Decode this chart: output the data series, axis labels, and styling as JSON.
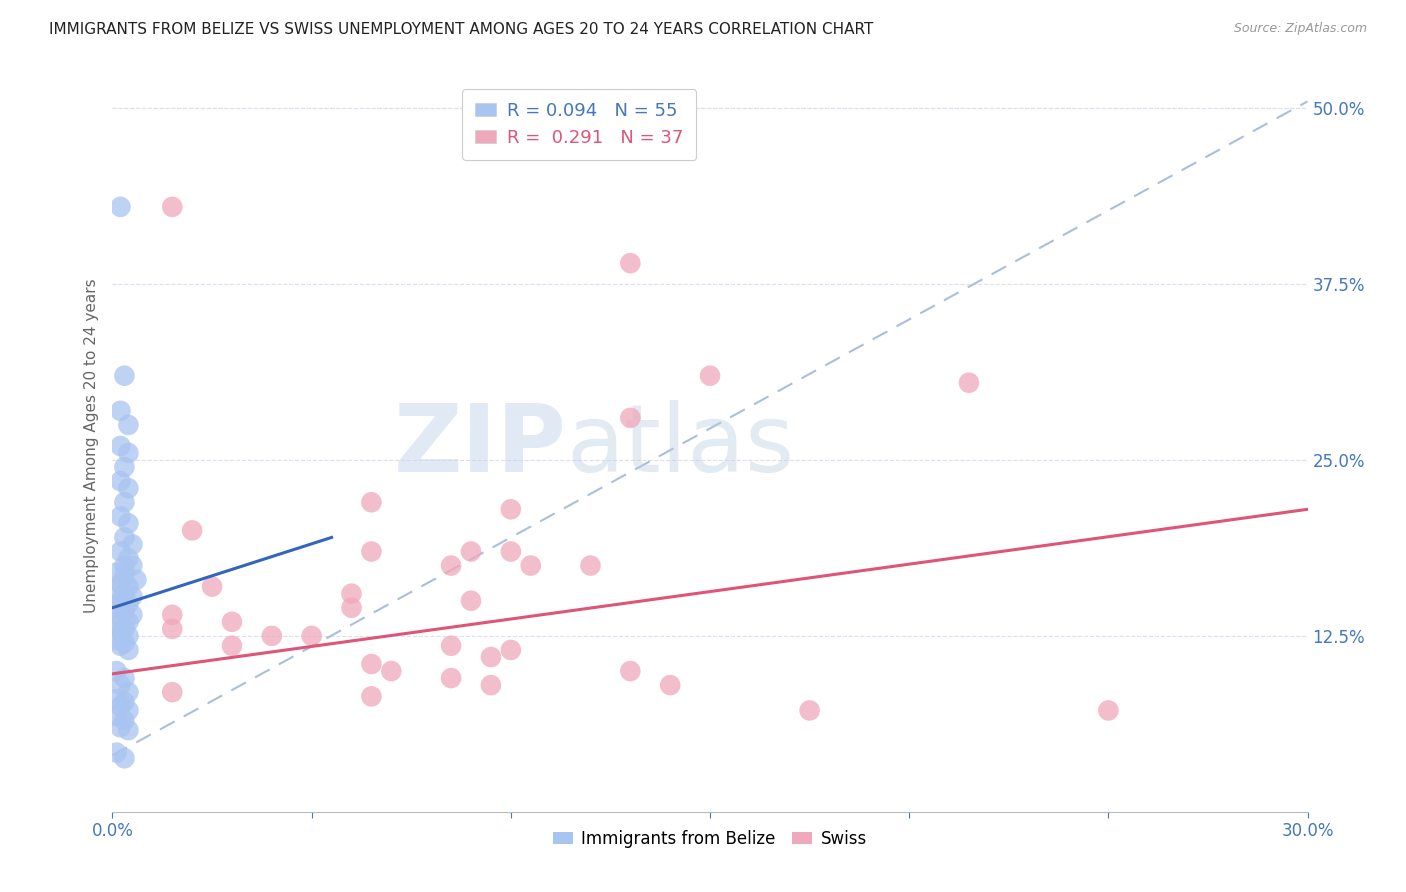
{
  "title": "IMMIGRANTS FROM BELIZE VS SWISS UNEMPLOYMENT AMONG AGES 20 TO 24 YEARS CORRELATION CHART",
  "source": "Source: ZipAtlas.com",
  "ylabel": "Unemployment Among Ages 20 to 24 years",
  "xlim": [
    0.0,
    0.3
  ],
  "ylim": [
    0.0,
    0.52
  ],
  "xticks": [
    0.0,
    0.05,
    0.1,
    0.15,
    0.2,
    0.25,
    0.3
  ],
  "xticklabels": [
    "0.0%",
    "",
    "",
    "",
    "",
    "",
    "30.0%"
  ],
  "yticks": [
    0.0,
    0.125,
    0.25,
    0.375,
    0.5
  ],
  "yticklabels": [
    "",
    "12.5%",
    "25.0%",
    "37.5%",
    "50.0%"
  ],
  "legend_r1": "R = 0.094",
  "legend_n1": "N = 55",
  "legend_r2": "R =  0.291",
  "legend_n2": "N = 37",
  "belize_color": "#a8c4f0",
  "swiss_color": "#f0a8bc",
  "belize_line_color": "#3366bb",
  "swiss_line_color": "#dd5577",
  "trendline_dash_color": "#aabfdb",
  "watermark_zip": "ZIP",
  "watermark_atlas": "atlas",
  "belize_points": [
    [
      0.002,
      0.43
    ],
    [
      0.003,
      0.31
    ],
    [
      0.002,
      0.285
    ],
    [
      0.004,
      0.275
    ],
    [
      0.002,
      0.26
    ],
    [
      0.004,
      0.255
    ],
    [
      0.003,
      0.245
    ],
    [
      0.002,
      0.235
    ],
    [
      0.004,
      0.23
    ],
    [
      0.003,
      0.22
    ],
    [
      0.002,
      0.21
    ],
    [
      0.004,
      0.205
    ],
    [
      0.003,
      0.195
    ],
    [
      0.005,
      0.19
    ],
    [
      0.002,
      0.185
    ],
    [
      0.004,
      0.18
    ],
    [
      0.003,
      0.175
    ],
    [
      0.005,
      0.175
    ],
    [
      0.001,
      0.17
    ],
    [
      0.003,
      0.168
    ],
    [
      0.006,
      0.165
    ],
    [
      0.002,
      0.162
    ],
    [
      0.004,
      0.16
    ],
    [
      0.001,
      0.158
    ],
    [
      0.003,
      0.155
    ],
    [
      0.005,
      0.153
    ],
    [
      0.002,
      0.15
    ],
    [
      0.004,
      0.148
    ],
    [
      0.001,
      0.145
    ],
    [
      0.003,
      0.143
    ],
    [
      0.005,
      0.14
    ],
    [
      0.002,
      0.138
    ],
    [
      0.004,
      0.135
    ],
    [
      0.001,
      0.132
    ],
    [
      0.003,
      0.13
    ],
    [
      0.002,
      0.128
    ],
    [
      0.004,
      0.125
    ],
    [
      0.001,
      0.122
    ],
    [
      0.003,
      0.12
    ],
    [
      0.002,
      0.118
    ],
    [
      0.004,
      0.115
    ],
    [
      0.001,
      0.1
    ],
    [
      0.003,
      0.095
    ],
    [
      0.002,
      0.09
    ],
    [
      0.004,
      0.085
    ],
    [
      0.001,
      0.08
    ],
    [
      0.003,
      0.078
    ],
    [
      0.002,
      0.075
    ],
    [
      0.004,
      0.072
    ],
    [
      0.001,
      0.068
    ],
    [
      0.003,
      0.065
    ],
    [
      0.002,
      0.06
    ],
    [
      0.004,
      0.058
    ],
    [
      0.001,
      0.042
    ],
    [
      0.003,
      0.038
    ]
  ],
  "swiss_points": [
    [
      0.015,
      0.43
    ],
    [
      0.13,
      0.39
    ],
    [
      0.15,
      0.31
    ],
    [
      0.215,
      0.305
    ],
    [
      0.13,
      0.28
    ],
    [
      0.065,
      0.22
    ],
    [
      0.1,
      0.215
    ],
    [
      0.02,
      0.2
    ],
    [
      0.065,
      0.185
    ],
    [
      0.09,
      0.185
    ],
    [
      0.1,
      0.185
    ],
    [
      0.085,
      0.175
    ],
    [
      0.105,
      0.175
    ],
    [
      0.12,
      0.175
    ],
    [
      0.025,
      0.16
    ],
    [
      0.06,
      0.155
    ],
    [
      0.09,
      0.15
    ],
    [
      0.06,
      0.145
    ],
    [
      0.015,
      0.14
    ],
    [
      0.03,
      0.135
    ],
    [
      0.015,
      0.13
    ],
    [
      0.04,
      0.125
    ],
    [
      0.05,
      0.125
    ],
    [
      0.03,
      0.118
    ],
    [
      0.085,
      0.118
    ],
    [
      0.1,
      0.115
    ],
    [
      0.095,
      0.11
    ],
    [
      0.065,
      0.105
    ],
    [
      0.07,
      0.1
    ],
    [
      0.13,
      0.1
    ],
    [
      0.085,
      0.095
    ],
    [
      0.095,
      0.09
    ],
    [
      0.14,
      0.09
    ],
    [
      0.015,
      0.085
    ],
    [
      0.065,
      0.082
    ],
    [
      0.175,
      0.072
    ],
    [
      0.25,
      0.072
    ]
  ],
  "belize_trend_x": [
    0.0,
    0.055
  ],
  "belize_trend_y": [
    0.145,
    0.195
  ],
  "swiss_trend_x": [
    0.0,
    0.3
  ],
  "swiss_trend_y": [
    0.098,
    0.215
  ],
  "dashed_trend_x": [
    0.0,
    0.3
  ],
  "dashed_trend_y": [
    0.04,
    0.505
  ]
}
